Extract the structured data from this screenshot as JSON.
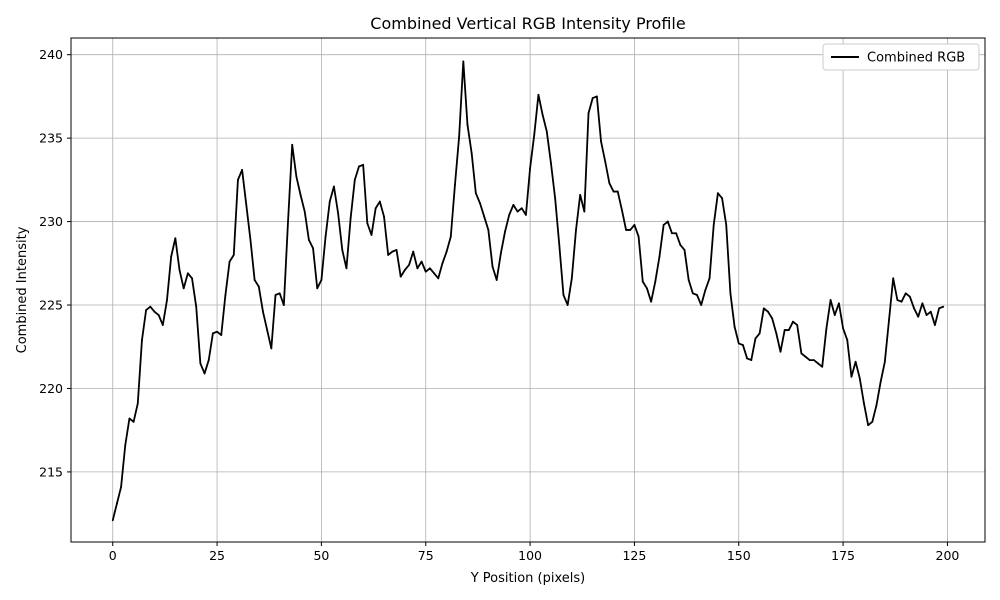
{
  "chart_data": {
    "type": "line",
    "title": "Combined Vertical RGB Intensity Profile",
    "xlabel": "Y Position (pixels)",
    "ylabel": "Combined Intensity",
    "xlim": [
      -10,
      209
    ],
    "ylim": [
      210.8,
      241.0
    ],
    "xticks": [
      0,
      25,
      50,
      75,
      100,
      125,
      150,
      175,
      200
    ],
    "yticks": [
      215,
      220,
      225,
      230,
      235,
      240
    ],
    "grid": true,
    "legend_position": "top-right",
    "line_color": "#000000",
    "series": [
      {
        "name": "Combined RGB",
        "x": [
          0,
          1,
          2,
          3,
          4,
          5,
          6,
          7,
          8,
          9,
          10,
          11,
          12,
          13,
          14,
          15,
          16,
          17,
          18,
          19,
          20,
          21,
          22,
          23,
          24,
          25,
          26,
          27,
          28,
          29,
          30,
          31,
          32,
          33,
          34,
          35,
          36,
          37,
          38,
          39,
          40,
          41,
          42,
          43,
          44,
          45,
          46,
          47,
          48,
          49,
          50,
          51,
          52,
          53,
          54,
          55,
          56,
          57,
          58,
          59,
          60,
          61,
          62,
          63,
          64,
          65,
          66,
          67,
          68,
          69,
          70,
          71,
          72,
          73,
          74,
          75,
          76,
          77,
          78,
          79,
          80,
          81,
          82,
          83,
          84,
          85,
          86,
          87,
          88,
          89,
          90,
          91,
          92,
          93,
          94,
          95,
          96,
          97,
          98,
          99,
          100,
          101,
          102,
          103,
          104,
          105,
          106,
          107,
          108,
          109,
          110,
          111,
          112,
          113,
          114,
          115,
          116,
          117,
          118,
          119,
          120,
          121,
          122,
          123,
          124,
          125,
          126,
          127,
          128,
          129,
          130,
          131,
          132,
          133,
          134,
          135,
          136,
          137,
          138,
          139,
          140,
          141,
          142,
          143,
          144,
          145,
          146,
          147,
          148,
          149,
          150,
          151,
          152,
          153,
          154,
          155,
          156,
          157,
          158,
          159,
          160,
          161,
          162,
          163,
          164,
          165,
          166,
          167,
          168,
          169,
          170,
          171,
          172,
          173,
          174,
          175,
          176,
          177,
          178,
          179,
          180,
          181,
          182,
          183,
          184,
          185,
          186,
          187,
          188,
          189,
          190,
          191,
          192,
          193,
          194,
          195,
          196,
          197,
          198,
          199
        ],
        "values": [
          212.1,
          213.1,
          214.1,
          216.6,
          218.2,
          218.0,
          219.1,
          222.9,
          224.7,
          224.9,
          224.6,
          224.4,
          223.8,
          225.3,
          227.9,
          229.0,
          227.1,
          226.0,
          226.9,
          226.6,
          224.9,
          221.5,
          220.9,
          221.7,
          223.3,
          223.4,
          223.2,
          225.6,
          227.6,
          228.0,
          232.5,
          233.1,
          231.0,
          228.9,
          226.5,
          226.1,
          224.6,
          223.5,
          222.4,
          225.6,
          225.7,
          225.0,
          230.0,
          234.6,
          232.7,
          231.6,
          230.6,
          228.9,
          228.4,
          226.0,
          226.5,
          229.1,
          231.2,
          232.1,
          230.5,
          228.3,
          227.2,
          230.2,
          232.5,
          233.3,
          233.4,
          229.9,
          229.2,
          230.8,
          231.2,
          230.3,
          228.0,
          228.2,
          228.3,
          226.7,
          227.1,
          227.4,
          228.2,
          227.2,
          227.6,
          227.0,
          227.2,
          226.9,
          226.6,
          227.5,
          228.2,
          229.1,
          232.2,
          235.1,
          239.6,
          235.8,
          234.1,
          231.7,
          231.1,
          230.3,
          229.5,
          227.3,
          226.5,
          228.1,
          229.4,
          230.4,
          231.0,
          230.6,
          230.8,
          230.4,
          233.2,
          235.2,
          237.6,
          236.4,
          235.4,
          233.5,
          231.4,
          228.6,
          225.6,
          225.0,
          226.6,
          229.5,
          231.6,
          230.6,
          236.5,
          237.4,
          237.5,
          234.8,
          233.6,
          232.3,
          231.8,
          231.8,
          230.7,
          229.5,
          229.5,
          229.8,
          229.1,
          226.4,
          226.0,
          225.2,
          226.4,
          227.9,
          229.8,
          230.0,
          229.3,
          229.3,
          228.6,
          228.3,
          226.5,
          225.7,
          225.6,
          225.0,
          225.9,
          226.6,
          229.8,
          231.7,
          231.4,
          229.8,
          225.7,
          223.7,
          222.7,
          222.6,
          221.8,
          221.7,
          223.0,
          223.3,
          224.8,
          224.6,
          224.2,
          223.3,
          222.2,
          223.5,
          223.5,
          224.0,
          223.8,
          222.1,
          221.9,
          221.7,
          221.7,
          221.5,
          221.3,
          223.6,
          225.3,
          224.4,
          225.1,
          223.6,
          222.9,
          220.7,
          221.6,
          220.6,
          219.1,
          217.8,
          218.0,
          219.0,
          220.4,
          221.6,
          224.1,
          226.6,
          225.3,
          225.2,
          225.7,
          225.5,
          224.8,
          224.3,
          225.1,
          224.4,
          224.6,
          223.8,
          224.8,
          224.9
        ]
      }
    ]
  }
}
